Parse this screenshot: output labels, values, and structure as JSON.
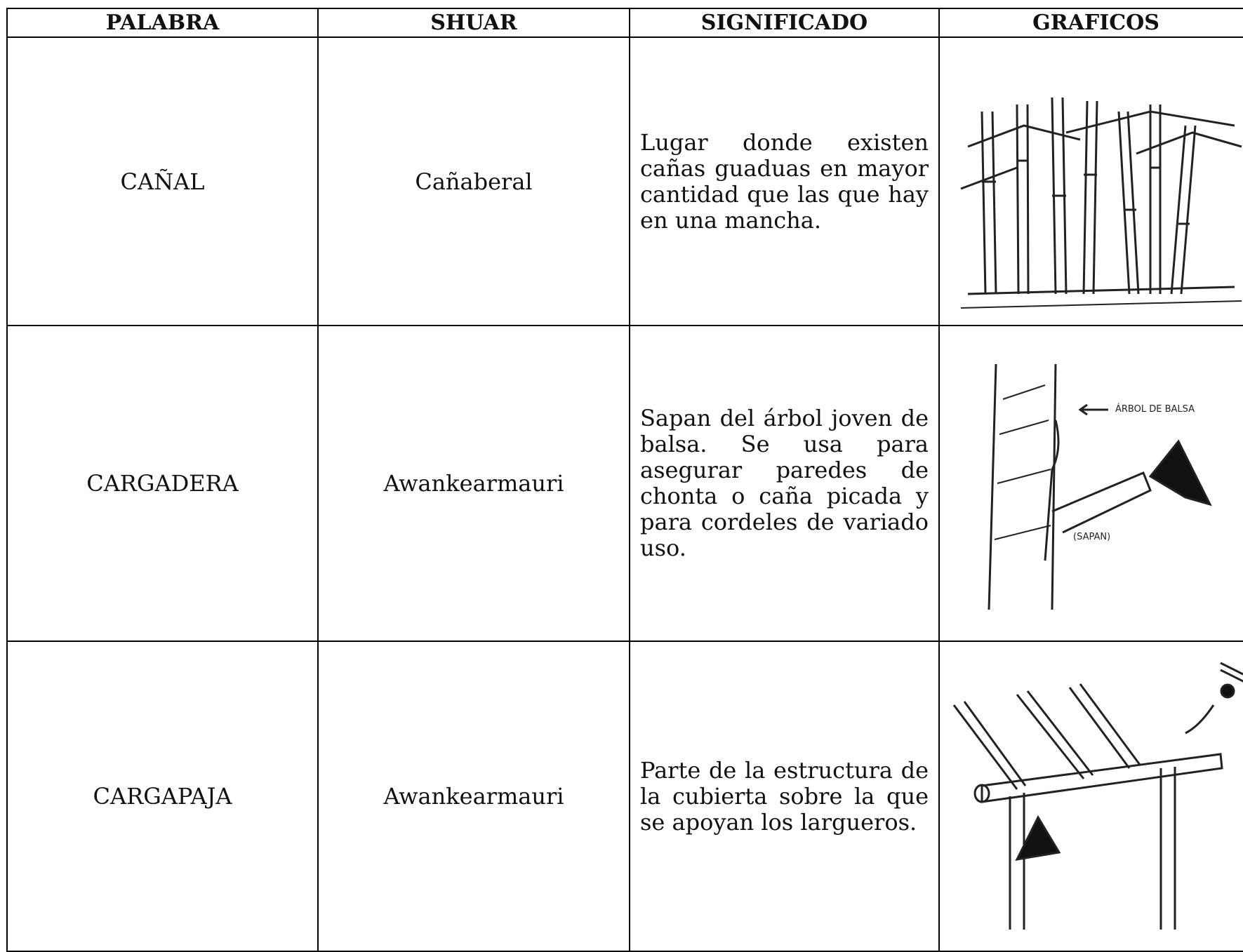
{
  "table": {
    "header": [
      "PALABRA",
      "SHUAR",
      "SIGNIFICADO",
      "GRAFICOS"
    ],
    "rows": [
      [
        "CAÑAL",
        "Cañaberal",
        "Lugar donde existen cañas guaduas en mayor cantidad que las que hay en una mancha."
      ],
      [
        "CARGADERA",
        "Awankearmauri",
        "Sapan del árbol joven de balsa. Se usa para asegurar paredes de chonta o caña picada y para cordeles de variado uso."
      ],
      [
        "CARGAPAJA",
        "Awankearmauri",
        "Parte de la estructura de la cubierta sobre la que se apoyan los largueros."
      ]
    ],
    "figure_labels": [
      "ÁRBOL DE BALSA",
      "(SAPAN)"
    ]
  }
}
